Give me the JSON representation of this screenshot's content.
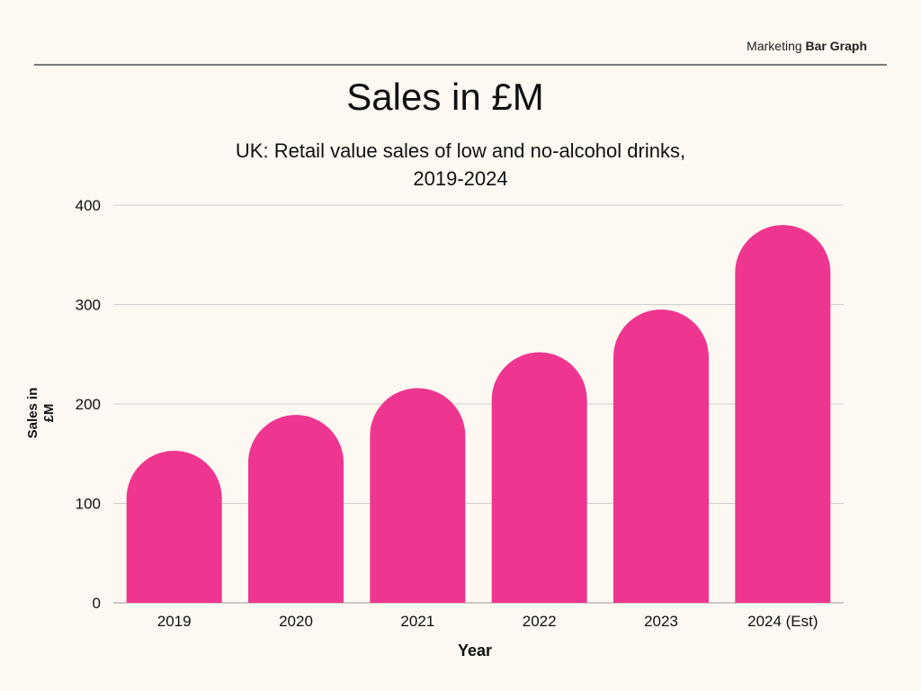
{
  "header": {
    "tag_plain": "Marketing",
    "tag_bold": "Bar Graph"
  },
  "chart_data": {
    "type": "bar",
    "title": "Sales in £M",
    "subtitle_line1": "UK: Retail value sales of low and no-alcohol drinks,",
    "subtitle_line2": "2019-2024",
    "xlabel": "Year",
    "ylabel_line1": "Sales in",
    "ylabel_line2": "£M",
    "categories": [
      "2019",
      "2020",
      "2021",
      "2022",
      "2023",
      "2024 (Est)"
    ],
    "values": [
      153,
      189,
      216,
      252,
      295,
      380
    ],
    "ylim": [
      0,
      400
    ],
    "yticks": [
      "0",
      "100",
      "200",
      "300",
      "400"
    ],
    "grid": true,
    "bar_color": "#ee3690",
    "grid_color": "#cfcfcf"
  }
}
